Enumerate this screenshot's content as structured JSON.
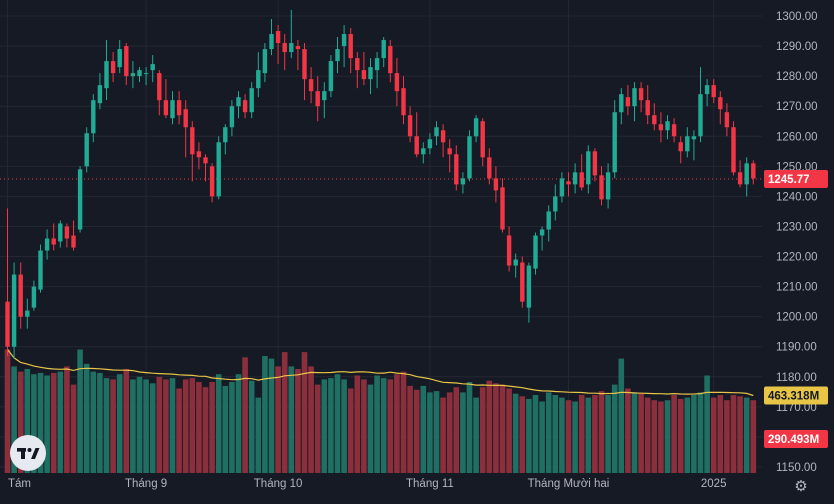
{
  "colors": {
    "background": "#161a25",
    "grid": "#242733",
    "up": "#22ab94",
    "down": "#f23645",
    "volume_up": "#1f6f63",
    "volume_down": "#8c2f3c",
    "ma_line": "#e8c547",
    "axis_text": "#b2b5be",
    "price_line": "#f23645"
  },
  "icons": {
    "logo": "tradingview-logo-icon",
    "settings": "gear-icon"
  },
  "chart_data": {
    "type": "candlestick",
    "y_axis": {
      "min": 1150,
      "max": 1300,
      "ticks": [
        1300,
        1290,
        1280,
        1270,
        1260,
        1250,
        1240,
        1230,
        1220,
        1210,
        1200,
        1190,
        1180,
        1170,
        1160,
        1150
      ],
      "tick_labels": [
        "1300.00",
        "1290.00",
        "1280.00",
        "1270.00",
        "1260.00",
        "1250.00",
        "1240.00",
        "1230.00",
        "1220.00",
        "1210.00",
        "1200.00",
        "1190.00",
        "1180.00",
        "1170.00",
        "1160.00",
        "1150.00"
      ]
    },
    "x_axis_labels": [
      {
        "label": "Tám",
        "index": 0
      },
      {
        "label": "Tháng 9",
        "index": 21
      },
      {
        "label": "Tháng 10",
        "index": 41
      },
      {
        "label": "Tháng 11",
        "index": 64
      },
      {
        "label": "Tháng Mười hai",
        "index": 85
      },
      {
        "label": "2025",
        "index": 107
      }
    ],
    "last_price": {
      "value": 1245.77,
      "label": "1245.77"
    },
    "volume_labels": [
      {
        "value": "463.318M",
        "kind": "ma"
      },
      {
        "value": "290.493M",
        "kind": "last"
      }
    ],
    "ohlc": [
      [
        1205,
        1236,
        1187,
        1190
      ],
      [
        1190,
        1218,
        1186,
        1214
      ],
      [
        1214,
        1218,
        1196,
        1200
      ],
      [
        1200,
        1206,
        1196,
        1202
      ],
      [
        1203,
        1212,
        1202,
        1210
      ],
      [
        1209,
        1224,
        1208,
        1222
      ],
      [
        1222,
        1229,
        1219,
        1226
      ],
      [
        1226,
        1231,
        1222,
        1224
      ],
      [
        1225,
        1232,
        1223,
        1231
      ],
      [
        1230,
        1231,
        1223,
        1226
      ],
      [
        1227,
        1232,
        1222,
        1223
      ],
      [
        1229,
        1250,
        1228,
        1249
      ],
      [
        1250,
        1263,
        1248,
        1261
      ],
      [
        1261,
        1274,
        1258,
        1272
      ],
      [
        1271,
        1281,
        1269,
        1277
      ],
      [
        1276,
        1292,
        1272,
        1285
      ],
      [
        1285,
        1288,
        1278,
        1281
      ],
      [
        1283,
        1292,
        1281,
        1289
      ],
      [
        1290,
        1291,
        1277,
        1280
      ],
      [
        1280,
        1285,
        1276,
        1281
      ],
      [
        1280,
        1283,
        1278,
        1282
      ],
      [
        1281,
        1283,
        1277,
        1281
      ],
      [
        1282,
        1287,
        1278,
        1284
      ],
      [
        1281,
        1282,
        1267,
        1272
      ],
      [
        1272,
        1279,
        1266,
        1267
      ],
      [
        1266,
        1275,
        1264,
        1272
      ],
      [
        1272,
        1275,
        1264,
        1267
      ],
      [
        1269,
        1272,
        1253,
        1263
      ],
      [
        1263,
        1265,
        1245,
        1254
      ],
      [
        1255,
        1258,
        1249,
        1253
      ],
      [
        1253,
        1254,
        1245,
        1251
      ],
      [
        1250,
        1251,
        1238,
        1240
      ],
      [
        1240,
        1260,
        1239,
        1258
      ],
      [
        1258,
        1264,
        1254,
        1263
      ],
      [
        1263,
        1272,
        1260,
        1270
      ],
      [
        1270,
        1275,
        1266,
        1273
      ],
      [
        1272,
        1274,
        1266,
        1268
      ],
      [
        1268,
        1278,
        1266,
        1276
      ],
      [
        1276,
        1288,
        1273,
        1282
      ],
      [
        1281,
        1291,
        1278,
        1289
      ],
      [
        1289,
        1299,
        1287,
        1294
      ],
      [
        1295,
        1297,
        1284,
        1291
      ],
      [
        1291,
        1294,
        1282,
        1288
      ],
      [
        1288,
        1302,
        1286,
        1291
      ],
      [
        1290,
        1292,
        1282,
        1289
      ],
      [
        1289,
        1291,
        1272,
        1279
      ],
      [
        1279,
        1283,
        1271,
        1275
      ],
      [
        1275,
        1280,
        1265,
        1270
      ],
      [
        1272,
        1278,
        1266,
        1275
      ],
      [
        1275,
        1287,
        1273,
        1285
      ],
      [
        1285,
        1293,
        1281,
        1289
      ],
      [
        1290,
        1297,
        1283,
        1294
      ],
      [
        1294,
        1296,
        1281,
        1286
      ],
      [
        1286,
        1288,
        1276,
        1282
      ],
      [
        1282,
        1288,
        1277,
        1279
      ],
      [
        1279,
        1286,
        1274,
        1283
      ],
      [
        1282,
        1288,
        1276,
        1286
      ],
      [
        1286,
        1293,
        1283,
        1292
      ],
      [
        1290,
        1292,
        1278,
        1281
      ],
      [
        1281,
        1286,
        1270,
        1275
      ],
      [
        1276,
        1280,
        1264,
        1267
      ],
      [
        1267,
        1270,
        1258,
        1260
      ],
      [
        1260,
        1268,
        1253,
        1254
      ],
      [
        1254,
        1258,
        1251,
        1256
      ],
      [
        1256,
        1261,
        1254,
        1259
      ],
      [
        1260,
        1265,
        1257,
        1263
      ],
      [
        1262,
        1264,
        1253,
        1258
      ],
      [
        1256,
        1259,
        1248,
        1254
      ],
      [
        1254,
        1257,
        1242,
        1244
      ],
      [
        1244,
        1248,
        1241,
        1246
      ],
      [
        1246,
        1262,
        1245,
        1260
      ],
      [
        1260,
        1267,
        1258,
        1266
      ],
      [
        1265,
        1266,
        1250,
        1253
      ],
      [
        1253,
        1256,
        1244,
        1246
      ],
      [
        1246,
        1250,
        1238,
        1242
      ],
      [
        1243,
        1246,
        1228,
        1229
      ],
      [
        1227,
        1230,
        1215,
        1217
      ],
      [
        1217,
        1221,
        1213,
        1219
      ],
      [
        1218,
        1220,
        1203,
        1205
      ],
      [
        1203,
        1218,
        1198,
        1217
      ],
      [
        1216,
        1228,
        1214,
        1227
      ],
      [
        1227,
        1230,
        1222,
        1229
      ],
      [
        1229,
        1237,
        1225,
        1235
      ],
      [
        1235,
        1244,
        1232,
        1240
      ],
      [
        1240,
        1248,
        1238,
        1246
      ],
      [
        1245,
        1248,
        1240,
        1244
      ],
      [
        1244,
        1251,
        1241,
        1248
      ],
      [
        1248,
        1254,
        1242,
        1243
      ],
      [
        1244,
        1257,
        1241,
        1255
      ],
      [
        1255,
        1256,
        1245,
        1247
      ],
      [
        1247,
        1250,
        1237,
        1239
      ],
      [
        1239,
        1251,
        1236,
        1248
      ],
      [
        1248,
        1272,
        1246,
        1268
      ],
      [
        1268,
        1276,
        1264,
        1274
      ],
      [
        1273,
        1277,
        1267,
        1270
      ],
      [
        1270,
        1278,
        1265,
        1276
      ],
      [
        1276,
        1278,
        1268,
        1272
      ],
      [
        1272,
        1277,
        1264,
        1267
      ],
      [
        1267,
        1271,
        1262,
        1264
      ],
      [
        1264,
        1268,
        1258,
        1262
      ],
      [
        1262,
        1267,
        1259,
        1265
      ],
      [
        1264,
        1266,
        1258,
        1260
      ],
      [
        1258,
        1260,
        1251,
        1255
      ],
      [
        1255,
        1263,
        1253,
        1260
      ],
      [
        1259,
        1262,
        1252,
        1260
      ],
      [
        1260,
        1283,
        1258,
        1274
      ],
      [
        1274,
        1279,
        1270,
        1277
      ],
      [
        1277,
        1279,
        1271,
        1273
      ],
      [
        1273,
        1275,
        1264,
        1269
      ],
      [
        1268,
        1271,
        1260,
        1263
      ],
      [
        1263,
        1265,
        1247,
        1248
      ],
      [
        1248,
        1252,
        1243,
        1244
      ],
      [
        1244,
        1253,
        1240,
        1251
      ],
      [
        1251,
        1252,
        1244,
        1246
      ]
    ],
    "volume_ratio": [
      0.95,
      0.82,
      0.78,
      0.8,
      0.76,
      0.77,
      0.75,
      0.77,
      0.78,
      0.82,
      0.68,
      0.95,
      0.84,
      0.78,
      0.77,
      0.73,
      0.72,
      0.76,
      0.8,
      0.72,
      0.74,
      0.72,
      0.69,
      0.74,
      0.72,
      0.73,
      0.65,
      0.72,
      0.73,
      0.7,
      0.66,
      0.7,
      0.76,
      0.67,
      0.7,
      0.76,
      0.89,
      0.71,
      0.58,
      0.9,
      0.88,
      0.82,
      0.93,
      0.82,
      0.8,
      0.93,
      0.82,
      0.68,
      0.72,
      0.73,
      0.76,
      0.72,
      0.65,
      0.75,
      0.72,
      0.68,
      0.75,
      0.73,
      0.72,
      0.76,
      0.78,
      0.67,
      0.64,
      0.67,
      0.62,
      0.63,
      0.58,
      0.62,
      0.66,
      0.62,
      0.7,
      0.58,
      0.66,
      0.71,
      0.69,
      0.68,
      0.65,
      0.61,
      0.59,
      0.57,
      0.6,
      0.55,
      0.62,
      0.6,
      0.58,
      0.56,
      0.55,
      0.6,
      0.58,
      0.6,
      0.63,
      0.6,
      0.68,
      0.88,
      0.65,
      0.62,
      0.61,
      0.58,
      0.56,
      0.55,
      0.56,
      0.6,
      0.57,
      0.58,
      0.6,
      0.62,
      0.75,
      0.58,
      0.6,
      0.56,
      0.6,
      0.59,
      0.58,
      0.56
    ]
  }
}
